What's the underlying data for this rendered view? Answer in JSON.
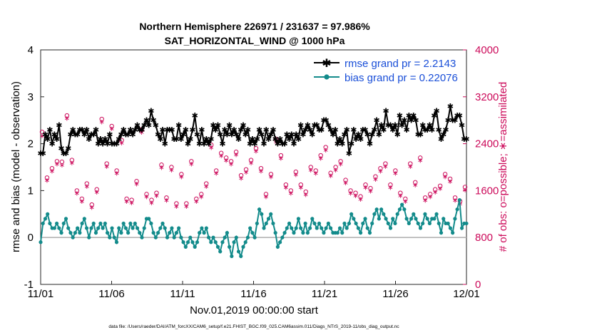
{
  "chart_data": {
    "type": "line",
    "title": "Northern Hemisphere 226971 / 231637 = 97.986%",
    "subtitle": "SAT_HORIZONTAL_WIND @ 1000 hPa",
    "xlabel": "Nov.01,2019 00:00:00 start",
    "ylabel_left": "rmse and bias (model - observation)",
    "ylabel_right": "# of obs: o=possible; ∗=assimilated",
    "footer": "data file: /Users/raeder/DAI/ATM_forcXX/CAM6_setup/f.e21.FHIST_BGC.f09_025.CAM6assim.011/Diags_NTrS_2019-11/obs_diag_output.nc",
    "xlim": [
      0,
      30
    ],
    "ylim_left": [
      -1,
      4
    ],
    "ylim_right": [
      0,
      4000
    ],
    "x_ticks": [
      "11/01",
      "11/06",
      "11/11",
      "11/16",
      "11/21",
      "11/26",
      "12/01"
    ],
    "y_ticks_left": [
      "-1",
      "0",
      "1",
      "2",
      "3",
      "4"
    ],
    "y_ticks_right": [
      "0",
      "800",
      "1600",
      "2400",
      "3200",
      "4000"
    ],
    "legend": {
      "position": "top-right",
      "entries": [
        "rmse grand pr = 2.2143",
        "bias grand pr = 0.22076"
      ]
    },
    "colors": {
      "rmse": "#000000",
      "bias": "#138b8b",
      "obs": "#cc0a5a",
      "zero": "#b3b3b3",
      "legend_text": "#1a4fd8"
    },
    "series": [
      {
        "name": "rmse",
        "values": [
          1.8,
          1.8,
          2.2,
          2.1,
          2.3,
          2.0,
          2.2,
          2.1,
          2.4,
          1.9,
          1.8,
          1.8,
          1.9,
          2.2,
          2.3,
          2.2,
          2.2,
          2.3,
          2.3,
          2.2,
          2.3,
          2.1,
          2.2,
          2.2,
          2.3,
          2.0,
          2.1,
          2.0,
          2.1,
          2.0,
          2.2,
          2.0,
          2.0,
          2.0,
          2.1,
          2.2,
          2.3,
          2.2,
          2.2,
          2.3,
          2.2,
          2.3,
          2.4,
          2.3,
          2.3,
          2.4,
          2.5,
          2.4,
          2.7,
          2.5,
          2.4,
          2.2,
          2.1,
          2.3,
          2.0,
          2.3,
          2.3,
          2.3,
          2.1,
          2.1,
          2.4,
          2.1,
          2.2,
          2.3,
          2.0,
          2.1,
          2.3,
          2.6,
          2.2,
          2.0,
          2.3,
          2.0,
          2.1,
          2.0,
          2.1,
          2.4,
          2.3,
          2.4,
          2.2,
          2.0,
          2.3,
          2.2,
          2.4,
          2.2,
          2.3,
          2.2,
          2.1,
          2.3,
          2.4,
          2.2,
          2.3,
          2.0,
          2.1,
          2.0,
          2.1,
          2.3,
          2.2,
          2.0,
          2.3,
          2.1,
          2.2,
          2.3,
          2.1,
          2.0,
          2.1,
          2.0,
          2.0,
          2.2,
          2.1,
          2.2,
          2.0,
          2.2,
          2.1,
          2.4,
          2.2,
          2.3,
          2.4,
          2.3,
          2.2,
          2.4,
          2.4,
          2.3,
          2.3,
          2.5,
          2.5,
          2.4,
          2.3,
          2.2,
          2.3,
          2.0,
          2.1,
          2.0,
          2.2,
          2.3,
          1.8,
          2.0,
          2.3,
          2.1,
          2.2,
          2.1,
          2.3,
          2.3,
          2.2,
          2.0,
          2.2,
          2.3,
          2.5,
          2.2,
          2.4,
          2.3,
          2.7,
          2.4,
          2.4,
          2.3,
          2.4,
          2.2,
          2.6,
          2.4,
          2.5,
          2.3,
          2.6,
          2.5,
          2.6,
          2.5,
          2.2,
          2.2,
          2.4,
          2.3,
          2.3,
          2.4,
          2.3,
          2.6,
          2.7,
          2.3,
          2.1,
          2.2,
          2.3,
          2.5,
          2.8,
          2.5,
          2.5,
          2.6,
          2.6,
          2.4,
          2.1,
          2.1
        ]
      },
      {
        "name": "bias",
        "values": [
          -0.1,
          0.3,
          0.4,
          0.5,
          0.3,
          0.2,
          0.2,
          0.3,
          0.2,
          0.1,
          0.3,
          0.4,
          0.2,
          0.1,
          0.0,
          0.1,
          0.2,
          0.1,
          0.3,
          0.4,
          0.2,
          0.0,
          0.2,
          0.3,
          0.1,
          0.2,
          0.3,
          0.2,
          0.3,
          0.1,
          0.0,
          0.2,
          0.0,
          -0.1,
          0.2,
          0.1,
          0.3,
          0.2,
          0.1,
          0.3,
          0.2,
          0.3,
          0.2,
          0.1,
          0.0,
          0.2,
          0.4,
          0.4,
          0.3,
          0.1,
          0.0,
          0.1,
          0.2,
          0.3,
          0.2,
          0.0,
          0.1,
          0.2,
          0.0,
          0.1,
          0.2,
          0.0,
          -0.1,
          -0.2,
          -0.1,
          0.0,
          -0.1,
          -0.2,
          -0.1,
          0.1,
          0.2,
          0.1,
          0.2,
          0.0,
          -0.1,
          0.0,
          -0.1,
          -0.2,
          -0.3,
          -0.1,
          0.0,
          0.1,
          -0.2,
          -0.4,
          -0.1,
          0.0,
          -0.3,
          -0.4,
          -0.2,
          -0.1,
          0.0,
          0.2,
          0.1,
          0.0,
          0.3,
          0.6,
          0.5,
          0.2,
          0.3,
          0.4,
          0.5,
          0.3,
          0.1,
          -0.2,
          -0.1,
          0.0,
          0.1,
          0.2,
          0.3,
          0.2,
          0.1,
          0.2,
          0.4,
          0.2,
          0.1,
          0.3,
          0.1,
          0.2,
          0.4,
          0.3,
          0.2,
          0.3,
          0.2,
          0.1,
          0.2,
          0.3,
          0.2,
          0.1,
          0.1,
          0.1,
          0.2,
          0.1,
          0.3,
          0.2,
          0.3,
          0.5,
          0.4,
          0.3,
          0.2,
          0.1,
          0.3,
          0.4,
          0.2,
          0.1,
          0.3,
          0.5,
          0.6,
          0.4,
          0.6,
          0.5,
          0.4,
          0.3,
          0.2,
          0.4,
          0.3,
          0.5,
          0.6,
          0.7,
          0.6,
          0.4,
          0.3,
          0.4,
          0.5,
          0.4,
          0.3,
          0.2,
          0.3,
          0.5,
          0.4,
          0.3,
          0.4,
          0.4,
          0.5,
          0.3,
          0.1,
          0.4,
          0.3,
          0.3,
          0.2,
          0.1,
          0.4,
          0.6,
          0.8,
          0.2,
          0.3,
          0.3
        ]
      },
      {
        "name": "possible",
        "values": [
          2600,
          1820,
          1980,
          2100,
          2090,
          2880,
          2120,
          1600,
          1460,
          1720,
          1360,
          1620,
          2820,
          2060,
          2700,
          1940,
          2460,
          1460,
          1440,
          1760,
          2640,
          1540,
          1440,
          1560,
          2040,
          1480,
          2000,
          1380,
          1880,
          1380,
          2100,
          1460,
          1540,
          1720,
          2380,
          1940,
          2240,
          2160,
          2100,
          2260,
          1860,
          1960,
          2120,
          2320,
          1980,
          1540,
          1880,
          2480,
          2200,
          1700,
          1600,
          1920,
          1700,
          1580,
          2000,
          1940,
          2200,
          2340,
          1900,
          2000,
          2100,
          1780,
          1600,
          1560,
          1500,
          1700,
          1640,
          1840,
          1980,
          2060,
          1700,
          1940,
          1560,
          1460,
          2060,
          1740,
          2160,
          1480,
          1540,
          1620,
          1680,
          1880,
          1800,
          1480,
          1420,
          1660
        ]
      },
      {
        "name": "assimilated",
        "values": [
          2540,
          1780,
          1940,
          2060,
          2040,
          2840,
          2080,
          1560,
          1420,
          1680,
          1320,
          1580,
          2780,
          2020,
          2660,
          1900,
          2420,
          1420,
          1400,
          1720,
          2600,
          1500,
          1400,
          1520,
          2000,
          1440,
          1960,
          1340,
          1840,
          1340,
          2060,
          1420,
          1500,
          1680,
          2340,
          1900,
          2200,
          2120,
          2060,
          2220,
          1820,
          1920,
          2080,
          2280,
          1940,
          1500,
          1840,
          2440,
          2160,
          1660,
          1560,
          1880,
          1660,
          1540,
          1960,
          1900,
          2160,
          2300,
          1860,
          1960,
          2060,
          1740,
          1560,
          1520,
          1460,
          1660,
          1600,
          1800,
          1940,
          2020,
          1660,
          1900,
          1520,
          1420,
          2020,
          1700,
          2120,
          1440,
          1500,
          1580,
          1640,
          1840,
          1760,
          1440,
          1380,
          1620
        ]
      }
    ]
  }
}
